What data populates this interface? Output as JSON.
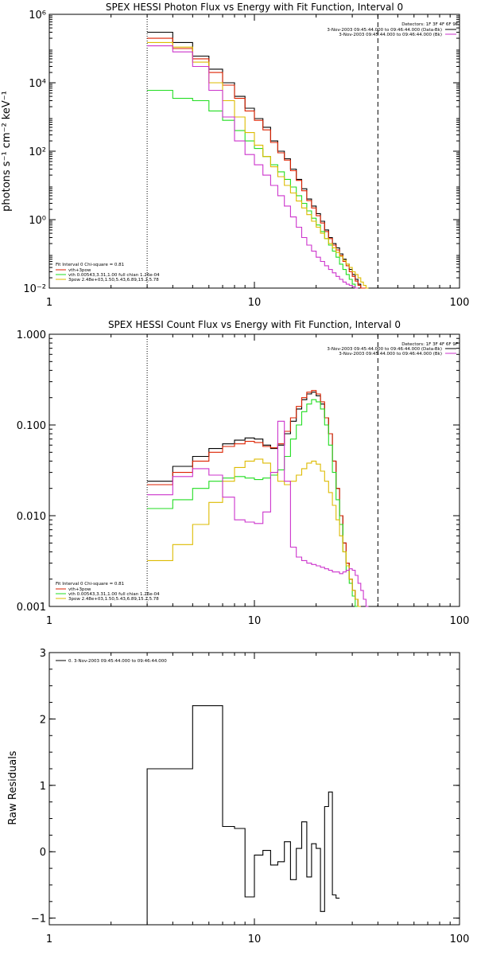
{
  "chart_data": [
    {
      "type": "line",
      "title": "SPEX HESSI Photon Flux vs Energy with Fit Function, Interval 0",
      "xlabel": "",
      "ylabel": "photons s⁻¹ cm⁻² keV⁻¹",
      "xscale": "log",
      "yscale": "log",
      "xlim": [
        1,
        100
      ],
      "ylim": [
        0.01,
        1000000
      ],
      "x_tick_labels": [
        "1",
        "10",
        "100"
      ],
      "y_tick_labels": [
        "10⁻²",
        "10⁰",
        "10²",
        "10⁴",
        "10⁶"
      ],
      "vlines_dotted": [
        3
      ],
      "vlines_dashed": [
        40
      ],
      "detectors_text": "Detectors: 1F 3F 4F 6F 9F",
      "data_intervals": [
        {
          "text": "3-Nov-2003 09:45:44.000 to 09:46:44.000 (Data-Bk)",
          "color": "#000000"
        },
        {
          "text": "3-Nov-2003 09:45:44.000 to 09:46:44.000 (Bk)",
          "color": "#cc33cc"
        }
      ],
      "fit_header": "Fit Interval 0   Chi-square = 0.81",
      "legend": [
        {
          "text": "vth+3pow",
          "color": "#dd2200"
        },
        {
          "text": "vth 0.00543,3.31,1.00  full chian 1.26e-04",
          "color": "#22dd22"
        },
        {
          "text": "3pow 2.48e+03,1.50,5.43,6.89,15.2,5.78",
          "color": "#ddbb00"
        }
      ],
      "bin_edges": [
        3,
        4,
        5,
        6,
        7,
        8,
        9,
        10,
        11,
        12,
        13,
        14,
        15,
        16,
        17,
        18,
        19,
        20,
        21,
        22,
        23,
        24,
        25,
        26,
        27,
        28,
        29,
        30,
        31,
        32,
        33,
        34,
        35,
        36,
        37,
        38,
        39,
        40,
        41,
        42,
        43,
        44,
        45,
        46,
        47,
        48
      ],
      "series": [
        {
          "color": "#000000",
          "values": [
            300000,
            150000,
            60000,
            25000,
            10000,
            4000,
            1800,
            900,
            500,
            200,
            100,
            60,
            30,
            15,
            8,
            4,
            2.5,
            1.5,
            0.9,
            0.5,
            0.3,
            0.2,
            0.15,
            0.1,
            0.07,
            0.05,
            0.035,
            0.025,
            0.018,
            0.013,
            0.01,
            0.01,
            null,
            null,
            null,
            null,
            null,
            null,
            null,
            null,
            null,
            null,
            null,
            null,
            null
          ]
        },
        {
          "color": "#dd2200",
          "values": [
            200000,
            100000,
            50000,
            20000,
            8500,
            3500,
            1500,
            800,
            420,
            180,
            90,
            55,
            27,
            14,
            7,
            3.6,
            2.2,
            1.3,
            0.8,
            0.45,
            0.28,
            0.18,
            0.13,
            0.09,
            0.06,
            0.045,
            0.03,
            0.022,
            0.016,
            0.012,
            0.01,
            0.01,
            null,
            null,
            null,
            null,
            null,
            null,
            null,
            null,
            null,
            null,
            null,
            null,
            null
          ]
        },
        {
          "color": "#22dd22",
          "values": [
            6000,
            3500,
            3000,
            1500,
            800,
            400,
            200,
            120,
            70,
            40,
            25,
            15,
            9,
            5,
            3,
            1.8,
            1.1,
            0.7,
            0.45,
            0.28,
            0.18,
            0.12,
            0.08,
            0.05,
            0.035,
            0.025,
            0.018,
            0.013,
            0.01,
            null,
            null,
            null,
            null,
            null,
            null,
            null,
            null,
            null,
            null,
            null,
            null,
            null,
            null,
            null,
            null
          ]
        },
        {
          "color": "#ddbb00",
          "values": [
            150000,
            110000,
            40000,
            10000,
            3000,
            1000,
            350,
            150,
            70,
            35,
            18,
            10,
            6,
            3.5,
            2.2,
            1.4,
            0.9,
            0.6,
            0.4,
            0.28,
            0.2,
            0.15,
            0.11,
            0.085,
            0.065,
            0.05,
            0.04,
            0.03,
            0.025,
            0.02,
            0.015,
            0.012,
            0.01,
            null,
            null,
            null,
            null,
            null,
            null,
            null,
            null,
            null,
            null,
            null,
            null
          ]
        },
        {
          "color": "#cc33cc",
          "values": [
            120000,
            80000,
            30000,
            6000,
            1000,
            200,
            80,
            40,
            20,
            10,
            5,
            2.5,
            1.2,
            0.6,
            0.3,
            0.18,
            0.12,
            0.08,
            0.06,
            0.045,
            0.035,
            0.028,
            0.022,
            0.018,
            0.015,
            0.013,
            0.012,
            0.011,
            0.01,
            null,
            null,
            null,
            null,
            null,
            null,
            null,
            null,
            null,
            null,
            null,
            null,
            null,
            null,
            null,
            null
          ]
        }
      ]
    },
    {
      "type": "line",
      "title": "SPEX HESSI Count Flux vs Energy with Fit Function, Interval 0",
      "xlabel": "",
      "ylabel": "",
      "xscale": "log",
      "yscale": "log",
      "xlim": [
        1,
        100
      ],
      "ylim": [
        0.001,
        1
      ],
      "x_tick_labels": [
        "1",
        "10",
        "100"
      ],
      "y_tick_labels": [
        "0.001",
        "0.010",
        "0.100",
        "1.000"
      ],
      "vlines_dotted": [
        3
      ],
      "vlines_dashed": [
        40
      ],
      "detectors_text": "Detectors: 1F 3F 4F 6F 9F",
      "data_intervals": [
        {
          "text": "3-Nov-2003 09:45:44.000 to 09:46:44.000 (Data-Bk)",
          "color": "#000000"
        },
        {
          "text": "3-Nov-2003 09:45:44.000 to 09:46:44.000 (Bk)",
          "color": "#cc33cc"
        }
      ],
      "fit_header": "Fit Interval 0   Chi-square = 0.81",
      "legend": [
        {
          "text": "vth+3pow",
          "color": "#dd2200"
        },
        {
          "text": "vth 0.00543,3.31,1.00  full chian 1.26e-04",
          "color": "#22dd22"
        },
        {
          "text": "3pow 2.48e+03,1.50,5.43,6.89,15.2,5.78",
          "color": "#ddbb00"
        }
      ],
      "bin_edges": [
        3,
        4,
        5,
        6,
        7,
        8,
        9,
        10,
        11,
        12,
        13,
        14,
        15,
        16,
        17,
        18,
        19,
        20,
        21,
        22,
        23,
        24,
        25,
        26,
        27,
        28,
        29,
        30,
        31,
        32,
        33,
        34,
        35,
        36,
        37,
        38,
        39,
        40,
        41,
        42,
        43,
        44,
        45,
        46,
        47,
        48
      ],
      "series": [
        {
          "color": "#000000",
          "values": [
            0.024,
            0.035,
            0.045,
            0.055,
            0.062,
            0.068,
            0.072,
            0.07,
            0.06,
            0.055,
            0.06,
            0.08,
            0.11,
            0.15,
            0.19,
            0.22,
            0.23,
            0.21,
            0.17,
            0.12,
            0.08,
            0.04,
            0.02,
            0.01,
            0.005,
            0.003,
            0.002,
            0.0015,
            0.0012,
            0.001,
            null,
            null,
            null,
            null,
            null,
            null,
            null,
            null,
            null,
            null,
            null,
            null,
            null,
            null,
            null
          ]
        },
        {
          "color": "#dd2200",
          "values": [
            0.022,
            0.03,
            0.04,
            0.05,
            0.058,
            0.062,
            0.066,
            0.064,
            0.058,
            0.056,
            0.062,
            0.085,
            0.12,
            0.16,
            0.2,
            0.23,
            0.24,
            0.22,
            0.18,
            0.12,
            0.08,
            0.04,
            0.02,
            0.01,
            0.005,
            0.003,
            0.002,
            0.0015,
            0.0012,
            0.001,
            null,
            null,
            null,
            null,
            null,
            null,
            null,
            null,
            null,
            null,
            null,
            null,
            null,
            null,
            null
          ]
        },
        {
          "color": "#22dd22",
          "values": [
            0.012,
            0.015,
            0.02,
            0.024,
            0.026,
            0.027,
            0.026,
            0.025,
            0.026,
            0.028,
            0.032,
            0.045,
            0.07,
            0.1,
            0.14,
            0.17,
            0.19,
            0.18,
            0.15,
            0.1,
            0.06,
            0.03,
            0.015,
            0.008,
            0.004,
            0.0025,
            0.0018,
            0.0013,
            0.001,
            null,
            null,
            null,
            null,
            null,
            null,
            null,
            null,
            null,
            null,
            null,
            null,
            null,
            null,
            null,
            null
          ]
        },
        {
          "color": "#ddbb00",
          "values": [
            0.0032,
            0.0048,
            0.008,
            0.014,
            0.024,
            0.034,
            0.04,
            0.042,
            0.038,
            0.03,
            0.024,
            0.022,
            0.024,
            0.028,
            0.033,
            0.038,
            0.04,
            0.037,
            0.031,
            0.024,
            0.018,
            0.013,
            0.009,
            0.006,
            0.004,
            0.0028,
            0.002,
            0.0015,
            0.0012,
            0.001,
            null,
            null,
            null,
            null,
            null,
            null,
            null,
            null,
            null,
            null,
            null,
            null,
            null,
            null,
            null
          ]
        },
        {
          "color": "#cc33cc",
          "values": [
            0.017,
            0.027,
            0.033,
            0.028,
            0.016,
            0.009,
            0.0085,
            0.0082,
            0.011,
            0.03,
            0.11,
            0.024,
            0.0045,
            0.0035,
            0.0032,
            0.003,
            0.0029,
            0.0028,
            0.0027,
            0.0026,
            0.0025,
            0.0024,
            0.0024,
            0.0023,
            0.0024,
            0.0025,
            0.0026,
            0.0025,
            0.0022,
            0.0018,
            0.0015,
            0.0012,
            0.001,
            null,
            null,
            null,
            null,
            null,
            null,
            null,
            null,
            null,
            null,
            null,
            null
          ]
        }
      ]
    },
    {
      "type": "line",
      "title": "",
      "xlabel": "",
      "ylabel": "Raw Residuals",
      "xscale": "log",
      "yscale": "linear",
      "xlim": [
        1,
        100
      ],
      "ylim": [
        -1.1,
        3
      ],
      "x_tick_labels": [
        "1",
        "10",
        "100"
      ],
      "y_tick_labels": [
        "−1",
        "0",
        "1",
        "2",
        "3"
      ],
      "legend": [
        {
          "text": "0. 3-Nov-2003 09:45:44.000 to 09:46:44.000",
          "color": "#000000"
        }
      ],
      "bin_edges": [
        3,
        4,
        5,
        6,
        7,
        8,
        9,
        10,
        11,
        12,
        13,
        14,
        15,
        16,
        17,
        18,
        19,
        20,
        21,
        22,
        23,
        24,
        25,
        26,
        27,
        28,
        29,
        30,
        31,
        32,
        33,
        34,
        35,
        36,
        37,
        38,
        39,
        40,
        41,
        42,
        43,
        44,
        45,
        46,
        47,
        48
      ],
      "series": [
        {
          "color": "#000000",
          "values": [
            1.25,
            1.25,
            2.2,
            2.2,
            0.38,
            0.35,
            -0.68,
            -0.05,
            0.02,
            -0.2,
            -0.15,
            0.15,
            -0.42,
            0.05,
            0.45,
            -0.38,
            0.12,
            0.05,
            -0.9,
            0.68,
            0.9,
            -0.65,
            -0.7,
            null,
            null,
            null,
            null,
            null,
            null,
            null,
            null,
            null,
            null,
            null,
            null,
            null,
            null,
            null,
            null,
            null,
            null,
            null,
            null,
            null,
            null
          ]
        }
      ]
    }
  ]
}
